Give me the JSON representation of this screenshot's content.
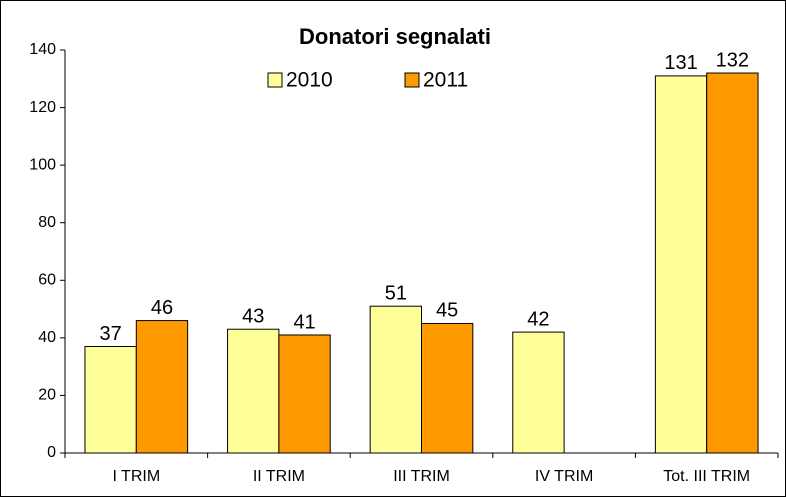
{
  "chart_data": {
    "type": "bar",
    "title": "Donatori segnalati",
    "categories": [
      "I TRIM",
      "II TRIM",
      "III TRIM",
      "IV TRIM",
      "Tot. III TRIM"
    ],
    "series": [
      {
        "name": "2010",
        "color": "#ffff99",
        "values": [
          37,
          43,
          51,
          42,
          131
        ]
      },
      {
        "name": "2011",
        "color": "#ff9900",
        "values": [
          46,
          41,
          45,
          null,
          132
        ]
      }
    ],
    "ylim": [
      0,
      140
    ],
    "yticks": [
      0,
      20,
      40,
      60,
      80,
      100,
      120,
      140
    ],
    "grid": false,
    "legend": "top"
  }
}
